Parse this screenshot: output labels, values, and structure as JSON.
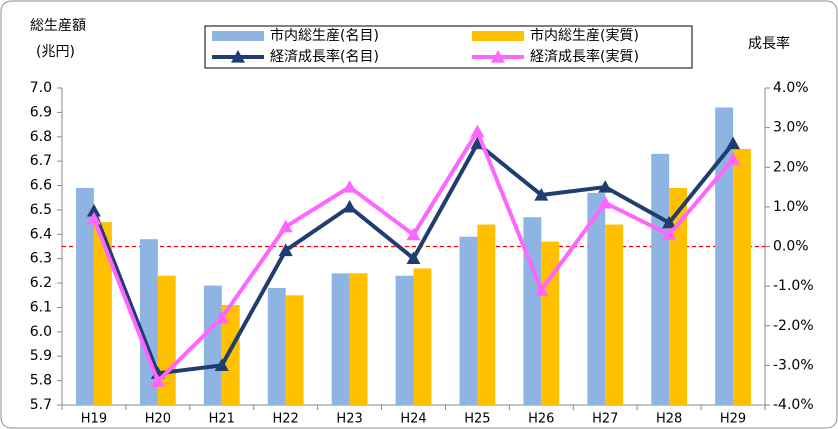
{
  "chart_data": {
    "type": "bar_line",
    "y_title": [
      "総生産額",
      "(兆円)"
    ],
    "y2_title": "成長率",
    "categories": [
      "H19",
      "H20",
      "H21",
      "H22",
      "H23",
      "H24",
      "H25",
      "H26",
      "H27",
      "H28",
      "H29"
    ],
    "series": [
      {
        "name": "市内総生産(名目)",
        "type": "bar",
        "color": "#8eb4e3",
        "values": [
          6.59,
          6.38,
          6.19,
          6.18,
          6.24,
          6.23,
          6.39,
          6.47,
          6.57,
          6.73,
          6.92
        ]
      },
      {
        "name": "市内総生産(実質)",
        "type": "bar",
        "color": "#ffc000",
        "values": [
          6.45,
          6.23,
          6.11,
          6.15,
          6.24,
          6.26,
          6.44,
          6.37,
          6.44,
          6.59,
          6.75
        ]
      },
      {
        "name": "経済成長率(名目)",
        "type": "line",
        "axis": "y2",
        "color": "#1f3d6e",
        "values": [
          0.9,
          -3.2,
          -3.0,
          -0.1,
          1.0,
          -0.3,
          2.6,
          1.3,
          1.5,
          0.6,
          2.6
        ]
      },
      {
        "name": "経済成長率(実質)",
        "type": "line",
        "axis": "y2",
        "color": "#ff66ff",
        "values": [
          0.7,
          -3.4,
          -1.8,
          0.5,
          1.5,
          0.3,
          2.9,
          -1.1,
          1.1,
          0.3,
          2.2
        ]
      }
    ],
    "ylim": [
      5.7,
      7.0
    ],
    "yticks": [
      5.7,
      5.8,
      5.9,
      {
        "value": 6.0,
        "label": "6.0"
      },
      6.1,
      6.2,
      6.3,
      6.4,
      6.5,
      6.6,
      6.7,
      6.8,
      6.9,
      {
        "value": 7.0,
        "label": "7.0"
      }
    ],
    "y2lim": [
      -4,
      4
    ],
    "y2ticks": [
      {
        "value": -4,
        "label": "-4.0%"
      },
      {
        "value": -3,
        "label": "-3.0%"
      },
      {
        "value": -2,
        "label": "-2.0%"
      },
      {
        "value": -1,
        "label": "-1.0%"
      },
      {
        "value": 0,
        "label": "0.0%"
      },
      {
        "value": 1,
        "label": "1.0%"
      },
      {
        "value": 2,
        "label": "2.0%"
      },
      {
        "value": 3,
        "label": "3.0%"
      },
      {
        "value": 4,
        "label": "4.0%"
      }
    ],
    "reference_line": {
      "axis": "y2",
      "value": 0,
      "color": "#ff0000"
    },
    "grid": false,
    "legend": "top"
  }
}
